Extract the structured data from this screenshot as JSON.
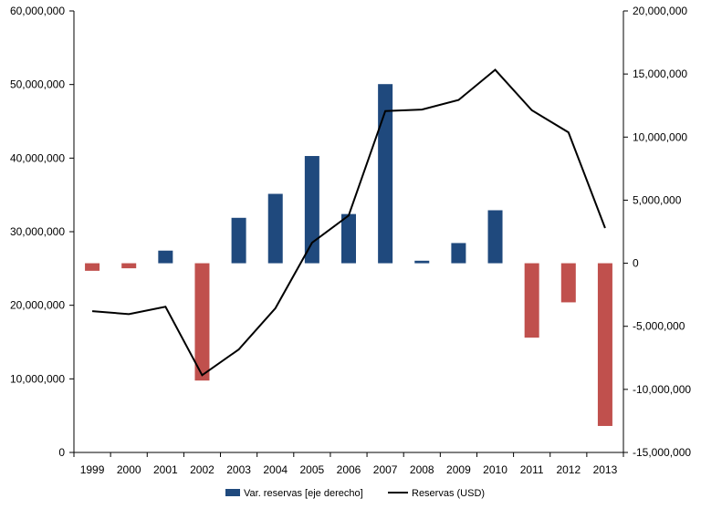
{
  "chart_data": {
    "type": "bar+line",
    "title": "",
    "categories": [
      "1999",
      "2000",
      "2001",
      "2002",
      "2003",
      "2004",
      "2005",
      "2006",
      "2007",
      "2008",
      "2009",
      "2010",
      "2011",
      "2012",
      "2013"
    ],
    "series": [
      {
        "name": "Var. reservas [eje derecho]",
        "type": "bar",
        "axis": "right",
        "values": [
          -600000,
          -400000,
          1000000,
          -9300000,
          3600000,
          5500000,
          8500000,
          3900000,
          14200000,
          200000,
          1600000,
          4200000,
          -5900000,
          -3100000,
          -12900000
        ],
        "positive_color": "#1f497d",
        "negative_color": "#c0504d"
      },
      {
        "name": "Reservas (USD)",
        "type": "line",
        "axis": "left",
        "values": [
          19200000,
          18800000,
          19800000,
          10500000,
          14000000,
          19600000,
          28500000,
          32200000,
          46400000,
          46600000,
          47900000,
          52000000,
          46500000,
          43500000,
          30500000
        ],
        "color": "#000000"
      }
    ],
    "left_axis": {
      "ylim": [
        0,
        60000000
      ],
      "ticks": [
        "0",
        "10,000,000",
        "20,000,000",
        "30,000,000",
        "40,000,000",
        "50,000,000",
        "60,000,000"
      ]
    },
    "right_axis": {
      "ylim": [
        -15000000,
        20000000
      ],
      "ticks": [
        "-15,000,000",
        "-10,000,000",
        "-5,000,000",
        "0",
        "5,000,000",
        "10,000,000",
        "15,000,000",
        "20,000,000"
      ]
    },
    "legend": {
      "position": "bottom",
      "entries": [
        "Var. reservas [eje derecho]",
        "Reservas (USD)"
      ]
    }
  }
}
